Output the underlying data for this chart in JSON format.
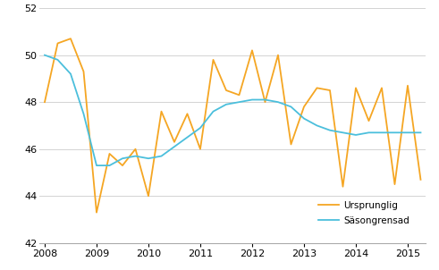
{
  "title": "",
  "xlabel": "",
  "ylabel": "",
  "ylim": [
    42,
    52
  ],
  "yticks": [
    42,
    44,
    46,
    48,
    50,
    52
  ],
  "xlim": [
    2007.9,
    2015.35
  ],
  "xticks": [
    2008,
    2009,
    2010,
    2011,
    2012,
    2013,
    2014,
    2015
  ],
  "ursprunglig_x": [
    2008.0,
    2008.25,
    2008.5,
    2008.75,
    2009.0,
    2009.25,
    2009.5,
    2009.75,
    2010.0,
    2010.25,
    2010.5,
    2010.75,
    2011.0,
    2011.25,
    2011.5,
    2011.75,
    2012.0,
    2012.25,
    2012.5,
    2012.75,
    2013.0,
    2013.25,
    2013.5,
    2013.75,
    2014.0,
    2014.25,
    2014.5,
    2014.75,
    2015.0,
    2015.25
  ],
  "ursprunglig_y": [
    48.0,
    50.5,
    50.7,
    49.3,
    43.3,
    45.8,
    45.3,
    46.0,
    44.0,
    47.6,
    46.3,
    47.5,
    46.0,
    49.8,
    48.5,
    48.3,
    50.2,
    48.0,
    50.0,
    46.2,
    47.8,
    48.6,
    48.5,
    44.4,
    48.6,
    47.2,
    48.6,
    44.5,
    48.7,
    44.7
  ],
  "sasongrensad_x": [
    2008.0,
    2008.25,
    2008.5,
    2008.75,
    2009.0,
    2009.25,
    2009.5,
    2009.75,
    2010.0,
    2010.25,
    2010.5,
    2010.75,
    2011.0,
    2011.25,
    2011.5,
    2011.75,
    2012.0,
    2012.25,
    2012.5,
    2012.75,
    2013.0,
    2013.25,
    2013.5,
    2013.75,
    2014.0,
    2014.25,
    2014.5,
    2014.75,
    2015.0,
    2015.25
  ],
  "sasongrensad_y": [
    50.0,
    49.8,
    49.2,
    47.5,
    45.3,
    45.3,
    45.6,
    45.7,
    45.6,
    45.7,
    46.1,
    46.5,
    46.9,
    47.6,
    47.9,
    48.0,
    48.1,
    48.1,
    48.0,
    47.8,
    47.3,
    47.0,
    46.8,
    46.7,
    46.6,
    46.7,
    46.7,
    46.7,
    46.7,
    46.7
  ],
  "ursprunglig_color": "#f5a623",
  "sasongrensad_color": "#4bbfdc",
  "background_color": "#ffffff",
  "grid_color": "#cccccc",
  "legend_labels": [
    "Ursprunglig",
    "Säsongrensad"
  ],
  "legend_fontsize": 7.5,
  "tick_fontsize": 8,
  "linewidth": 1.3
}
